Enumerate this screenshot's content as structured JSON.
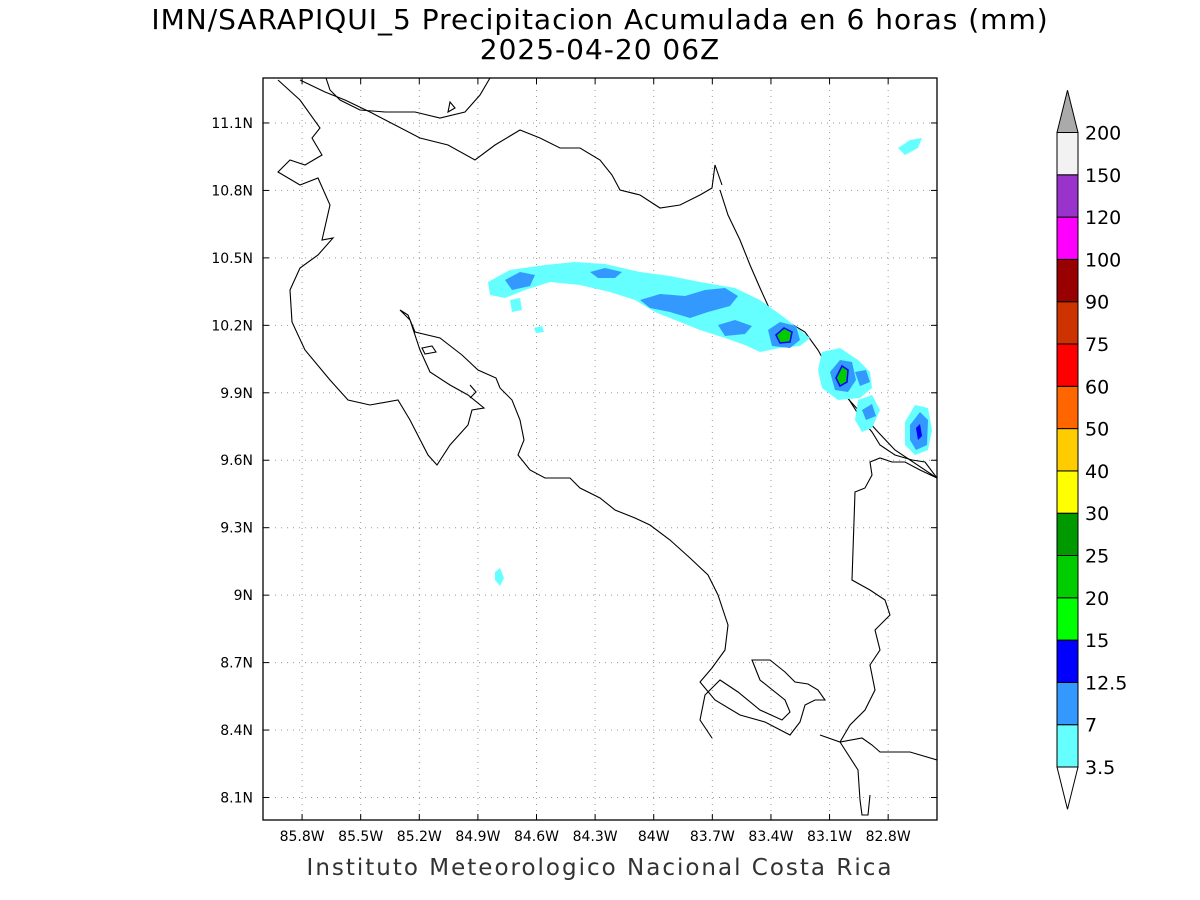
{
  "title": {
    "line1": "IMN/SARAPIQUI_5 Precipitacion Acumulada en 6 horas (mm)",
    "line2": "2025-04-20 06Z"
  },
  "footer": "Instituto Meteorologico Nacional Costa Rica",
  "map": {
    "lon_range": [
      -86.0,
      -82.55
    ],
    "lat_range": [
      8.0,
      11.3
    ],
    "lon_ticks": [
      {
        "value": -85.8,
        "label": "85.8W"
      },
      {
        "value": -85.5,
        "label": "85.5W"
      },
      {
        "value": -85.2,
        "label": "85.2W"
      },
      {
        "value": -84.9,
        "label": "84.9W"
      },
      {
        "value": -84.6,
        "label": "84.6W"
      },
      {
        "value": -84.3,
        "label": "84.3W"
      },
      {
        "value": -84.0,
        "label": "84W"
      },
      {
        "value": -83.7,
        "label": "83.7W"
      },
      {
        "value": -83.4,
        "label": "83.4W"
      },
      {
        "value": -83.1,
        "label": "83.1W"
      },
      {
        "value": -82.8,
        "label": "82.8W"
      }
    ],
    "lat_ticks": [
      {
        "value": 8.1,
        "label": "8.1N"
      },
      {
        "value": 8.4,
        "label": "8.4N"
      },
      {
        "value": 8.7,
        "label": "8.7N"
      },
      {
        "value": 9.0,
        "label": "9N"
      },
      {
        "value": 9.3,
        "label": "9.3N"
      },
      {
        "value": 9.6,
        "label": "9.6N"
      },
      {
        "value": 9.9,
        "label": "9.9N"
      },
      {
        "value": 10.2,
        "label": "10.2N"
      },
      {
        "value": 10.5,
        "label": "10.5N"
      },
      {
        "value": 10.8,
        "label": "10.8N"
      },
      {
        "value": 11.1,
        "label": "11.1N"
      }
    ],
    "grid": true
  },
  "colorbar": {
    "levels": [
      {
        "label": "3.5",
        "color": "#66ffff"
      },
      {
        "label": "7",
        "color": "#3399ff"
      },
      {
        "label": "12.5",
        "color": "#0000ff"
      },
      {
        "label": "15",
        "color": "#00ff00"
      },
      {
        "label": "20",
        "color": "#00cc00"
      },
      {
        "label": "25",
        "color": "#009900"
      },
      {
        "label": "30",
        "color": "#ffff00"
      },
      {
        "label": "40",
        "color": "#ffcc00"
      },
      {
        "label": "50",
        "color": "#ff6600"
      },
      {
        "label": "60",
        "color": "#ff0000"
      },
      {
        "label": "75",
        "color": "#cc3300"
      },
      {
        "label": "90",
        "color": "#990000"
      },
      {
        "label": "100",
        "color": "#ff00ff"
      },
      {
        "label": "120",
        "color": "#9933cc"
      },
      {
        "label": "150",
        "color": "#f2f2f2"
      },
      {
        "label": "200",
        "color": "#aaaaaa"
      }
    ]
  }
}
